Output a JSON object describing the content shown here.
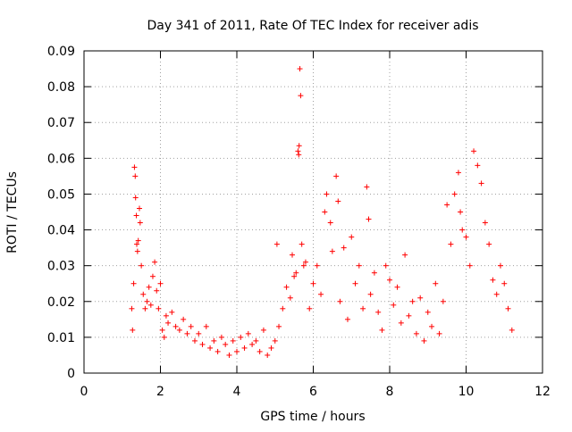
{
  "chart_data": {
    "type": "scatter",
    "title": "Day 341 of 2011, Rate Of TEC Index for receiver adis",
    "xlabel": "GPS time / hours",
    "ylabel": "ROTI / TECUs",
    "xlim": [
      0,
      12
    ],
    "ylim": [
      0,
      0.09
    ],
    "xticks": [
      "0",
      "2",
      "4",
      "6",
      "8",
      "10",
      "12"
    ],
    "yticks": [
      "0",
      "0.01",
      "0.02",
      "0.03",
      "0.04",
      "0.05",
      "0.06",
      "0.07",
      "0.08",
      "0.09"
    ],
    "grid": true,
    "marker": "+",
    "series": [
      {
        "name": "ROTI",
        "color": "#ff0000",
        "points": [
          [
            1.25,
            0.018
          ],
          [
            1.27,
            0.012
          ],
          [
            1.3,
            0.025
          ],
          [
            1.32,
            0.0575
          ],
          [
            1.34,
            0.055
          ],
          [
            1.35,
            0.049
          ],
          [
            1.37,
            0.044
          ],
          [
            1.38,
            0.036
          ],
          [
            1.4,
            0.034
          ],
          [
            1.42,
            0.037
          ],
          [
            1.45,
            0.046
          ],
          [
            1.47,
            0.042
          ],
          [
            1.5,
            0.03
          ],
          [
            1.55,
            0.022
          ],
          [
            1.6,
            0.018
          ],
          [
            1.65,
            0.02
          ],
          [
            1.7,
            0.024
          ],
          [
            1.75,
            0.019
          ],
          [
            1.8,
            0.027
          ],
          [
            1.85,
            0.031
          ],
          [
            1.9,
            0.023
          ],
          [
            1.95,
            0.018
          ],
          [
            2.0,
            0.025
          ],
          [
            2.05,
            0.012
          ],
          [
            2.1,
            0.01
          ],
          [
            2.15,
            0.016
          ],
          [
            2.2,
            0.014
          ],
          [
            2.3,
            0.017
          ],
          [
            2.4,
            0.013
          ],
          [
            2.5,
            0.012
          ],
          [
            2.6,
            0.015
          ],
          [
            2.7,
            0.011
          ],
          [
            2.8,
            0.013
          ],
          [
            2.9,
            0.009
          ],
          [
            3.0,
            0.011
          ],
          [
            3.1,
            0.008
          ],
          [
            3.2,
            0.013
          ],
          [
            3.3,
            0.007
          ],
          [
            3.4,
            0.009
          ],
          [
            3.5,
            0.006
          ],
          [
            3.6,
            0.01
          ],
          [
            3.7,
            0.008
          ],
          [
            3.8,
            0.005
          ],
          [
            3.9,
            0.009
          ],
          [
            4.0,
            0.006
          ],
          [
            4.1,
            0.01
          ],
          [
            4.2,
            0.007
          ],
          [
            4.3,
            0.011
          ],
          [
            4.4,
            0.008
          ],
          [
            4.5,
            0.009
          ],
          [
            4.6,
            0.006
          ],
          [
            4.7,
            0.012
          ],
          [
            4.8,
            0.005
          ],
          [
            4.9,
            0.007
          ],
          [
            5.0,
            0.009
          ],
          [
            5.05,
            0.036
          ],
          [
            5.1,
            0.013
          ],
          [
            5.2,
            0.018
          ],
          [
            5.3,
            0.024
          ],
          [
            5.4,
            0.021
          ],
          [
            5.45,
            0.033
          ],
          [
            5.5,
            0.027
          ],
          [
            5.55,
            0.028
          ],
          [
            5.6,
            0.062
          ],
          [
            5.62,
            0.061
          ],
          [
            5.63,
            0.0635
          ],
          [
            5.65,
            0.085
          ],
          [
            5.67,
            0.0775
          ],
          [
            5.7,
            0.036
          ],
          [
            5.75,
            0.03
          ],
          [
            5.8,
            0.031
          ],
          [
            5.9,
            0.018
          ],
          [
            6.0,
            0.025
          ],
          [
            6.1,
            0.03
          ],
          [
            6.2,
            0.022
          ],
          [
            6.3,
            0.045
          ],
          [
            6.35,
            0.05
          ],
          [
            6.45,
            0.042
          ],
          [
            6.5,
            0.034
          ],
          [
            6.6,
            0.055
          ],
          [
            6.65,
            0.048
          ],
          [
            6.7,
            0.02
          ],
          [
            6.8,
            0.035
          ],
          [
            6.9,
            0.015
          ],
          [
            7.0,
            0.038
          ],
          [
            7.1,
            0.025
          ],
          [
            7.2,
            0.03
          ],
          [
            7.3,
            0.018
          ],
          [
            7.4,
            0.052
          ],
          [
            7.45,
            0.043
          ],
          [
            7.5,
            0.022
          ],
          [
            7.6,
            0.028
          ],
          [
            7.7,
            0.017
          ],
          [
            7.8,
            0.012
          ],
          [
            7.9,
            0.03
          ],
          [
            8.0,
            0.026
          ],
          [
            8.1,
            0.019
          ],
          [
            8.2,
            0.024
          ],
          [
            8.3,
            0.014
          ],
          [
            8.4,
            0.033
          ],
          [
            8.5,
            0.016
          ],
          [
            8.6,
            0.02
          ],
          [
            8.7,
            0.011
          ],
          [
            8.8,
            0.021
          ],
          [
            8.9,
            0.009
          ],
          [
            9.0,
            0.017
          ],
          [
            9.1,
            0.013
          ],
          [
            9.2,
            0.025
          ],
          [
            9.3,
            0.011
          ],
          [
            9.4,
            0.02
          ],
          [
            9.5,
            0.047
          ],
          [
            9.6,
            0.036
          ],
          [
            9.7,
            0.05
          ],
          [
            9.8,
            0.056
          ],
          [
            9.85,
            0.045
          ],
          [
            9.9,
            0.04
          ],
          [
            10.0,
            0.038
          ],
          [
            10.1,
            0.03
          ],
          [
            10.2,
            0.062
          ],
          [
            10.3,
            0.058
          ],
          [
            10.4,
            0.053
          ],
          [
            10.5,
            0.042
          ],
          [
            10.6,
            0.036
          ],
          [
            10.7,
            0.026
          ],
          [
            10.8,
            0.022
          ],
          [
            10.9,
            0.03
          ],
          [
            11.0,
            0.025
          ],
          [
            11.1,
            0.018
          ],
          [
            11.2,
            0.012
          ]
        ]
      }
    ]
  }
}
